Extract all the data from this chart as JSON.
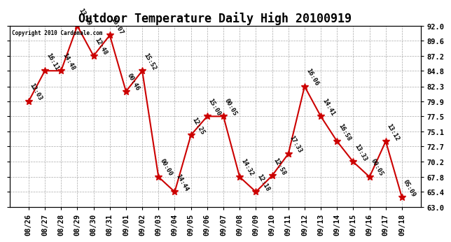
{
  "title": "Outdoor Temperature Daily High 20100919",
  "copyright": "Copyright 2010 Cardomale.com",
  "dates": [
    "08/26",
    "08/27",
    "08/28",
    "08/29",
    "08/30",
    "08/31",
    "09/01",
    "09/02",
    "09/03",
    "09/04",
    "09/05",
    "09/06",
    "09/07",
    "09/08",
    "09/09",
    "09/10",
    "09/11",
    "09/12",
    "09/13",
    "09/14",
    "09/15",
    "09/16",
    "09/17",
    "09/18"
  ],
  "values": [
    79.9,
    84.8,
    84.8,
    92.0,
    87.2,
    90.5,
    81.5,
    84.8,
    67.8,
    65.4,
    74.5,
    77.5,
    77.5,
    67.8,
    65.4,
    68.0,
    71.5,
    82.3,
    77.5,
    73.5,
    70.2,
    67.8,
    73.5,
    64.5
  ],
  "labels": [
    "12:03",
    "16:11",
    "14:48",
    "13:59",
    "12:48",
    "16:07",
    "00:46",
    "15:52",
    "00:00",
    "14:44",
    "12:25",
    "15:00",
    "00:05",
    "14:32",
    "12:18",
    "12:58",
    "17:33",
    "16:06",
    "14:41",
    "16:58",
    "13:33",
    "00:05",
    "13:12",
    "05:09"
  ],
  "line_color": "#cc0000",
  "marker_color": "#cc0000",
  "bg_color": "#ffffff",
  "grid_color": "#aaaaaa",
  "ylim_min": 63.0,
  "ylim_max": 92.0,
  "yticks": [
    63.0,
    65.4,
    67.8,
    70.2,
    72.7,
    75.1,
    77.5,
    79.9,
    82.3,
    84.8,
    87.2,
    89.6,
    92.0
  ],
  "title_fontsize": 12,
  "label_fontsize": 6.5,
  "tick_fontsize": 7.5
}
